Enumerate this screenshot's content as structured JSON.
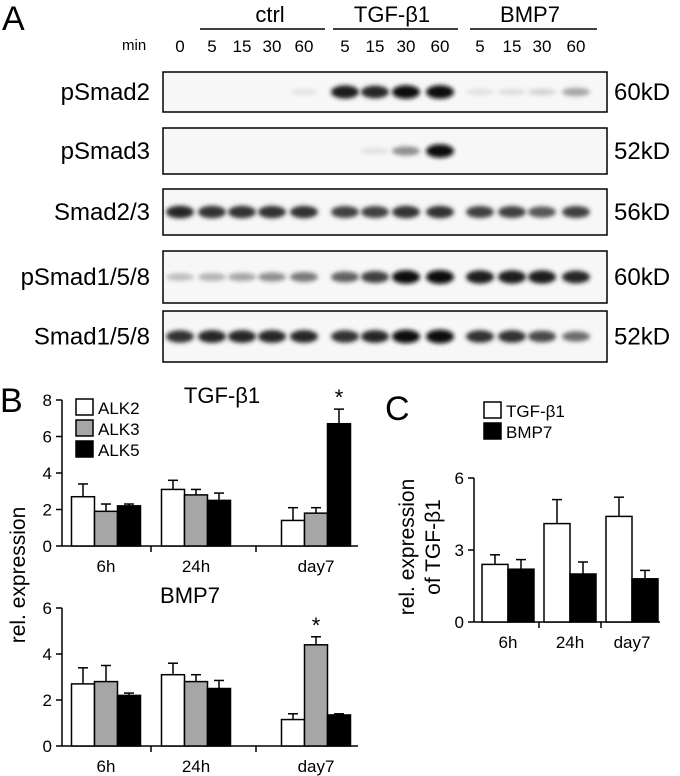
{
  "panels": {
    "a": "A",
    "b": "B",
    "c": "C"
  },
  "blot": {
    "min_label": "min",
    "groups": [
      "ctrl",
      "TGF-β1",
      "BMP7"
    ],
    "lanes": [
      "0",
      "5",
      "15",
      "30",
      "60",
      "5",
      "15",
      "30",
      "60",
      "5",
      "15",
      "30",
      "60"
    ],
    "rows": [
      {
        "name": "pSmad2",
        "kd": "60kD",
        "intensity": [
          0.02,
          0.02,
          0.02,
          0.02,
          0.03,
          0.9,
          0.85,
          0.95,
          0.95,
          0.05,
          0.06,
          0.1,
          0.3
        ]
      },
      {
        "name": "pSmad3",
        "kd": "52kD",
        "intensity": [
          0,
          0,
          0,
          0,
          0,
          0,
          0.05,
          0.4,
          0.95,
          0,
          0,
          0,
          0
        ]
      },
      {
        "name": "Smad2/3",
        "kd": "56kD",
        "intensity": [
          0.85,
          0.8,
          0.8,
          0.8,
          0.8,
          0.75,
          0.75,
          0.8,
          0.8,
          0.75,
          0.75,
          0.65,
          0.75
        ]
      },
      {
        "name": "pSmad1/5/8",
        "kd": "60kD",
        "intensity": [
          0.2,
          0.25,
          0.3,
          0.4,
          0.5,
          0.6,
          0.75,
          0.95,
          0.98,
          0.9,
          0.9,
          0.9,
          0.85
        ]
      },
      {
        "name": "Smad1/5/8",
        "kd": "52kD",
        "intensity": [
          0.8,
          0.85,
          0.85,
          0.85,
          0.85,
          0.8,
          0.85,
          0.95,
          0.98,
          0.8,
          0.8,
          0.7,
          0.55
        ]
      }
    ]
  },
  "chart_data": [
    {
      "type": "bar",
      "panel": "B",
      "title": "TGF-β1",
      "ylabel": "rel. expression",
      "categories": [
        "6h",
        "24h",
        "day7"
      ],
      "ylim": [
        0,
        8
      ],
      "yticks": [
        "0",
        "2",
        "4",
        "6",
        "8"
      ],
      "series": [
        {
          "name": "ALK2",
          "values": [
            2.7,
            3.1,
            1.4
          ],
          "errors": [
            0.7,
            0.5,
            0.7
          ],
          "color": "#ffffff"
        },
        {
          "name": "ALK3",
          "values": [
            1.9,
            2.8,
            1.8
          ],
          "errors": [
            0.4,
            0.3,
            0.3
          ],
          "color": "#a6a6a6"
        },
        {
          "name": "ALK5",
          "values": [
            2.2,
            2.5,
            6.7
          ],
          "errors": [
            0.1,
            0.4,
            0.8
          ],
          "color": "#000000"
        }
      ],
      "annotations": [
        {
          "text": "*",
          "category": "day7",
          "series": "ALK5"
        }
      ]
    },
    {
      "type": "bar",
      "panel": "B",
      "title": "BMP7",
      "ylabel": "rel. expression",
      "categories": [
        "6h",
        "24h",
        "day7"
      ],
      "ylim": [
        0,
        6
      ],
      "yticks": [
        "0",
        "2",
        "4",
        "6"
      ],
      "series": [
        {
          "name": "ALK2",
          "values": [
            2.7,
            3.1,
            1.15
          ],
          "errors": [
            0.7,
            0.5,
            0.25
          ],
          "color": "#ffffff"
        },
        {
          "name": "ALK3",
          "values": [
            2.8,
            2.8,
            4.4
          ],
          "errors": [
            0.7,
            0.3,
            0.35
          ],
          "color": "#a6a6a6"
        },
        {
          "name": "ALK5",
          "values": [
            2.2,
            2.5,
            1.35
          ],
          "errors": [
            0.1,
            0.35,
            0.05
          ],
          "color": "#000000"
        }
      ],
      "annotations": [
        {
          "text": "*",
          "category": "day7",
          "series": "ALK3"
        }
      ]
    },
    {
      "type": "bar",
      "panel": "C",
      "ylabel": "rel. expression of TGF-β1",
      "categories": [
        "6h",
        "24h",
        "day7"
      ],
      "ylim": [
        0,
        6
      ],
      "yticks": [
        "0",
        "3",
        "6"
      ],
      "series": [
        {
          "name": "TGF-β1",
          "values": [
            2.4,
            4.1,
            4.4
          ],
          "errors": [
            0.4,
            1.0,
            0.8
          ],
          "color": "#ffffff"
        },
        {
          "name": "BMP7",
          "values": [
            2.2,
            2.0,
            1.8
          ],
          "errors": [
            0.4,
            0.5,
            0.35
          ],
          "color": "#000000"
        }
      ]
    }
  ]
}
